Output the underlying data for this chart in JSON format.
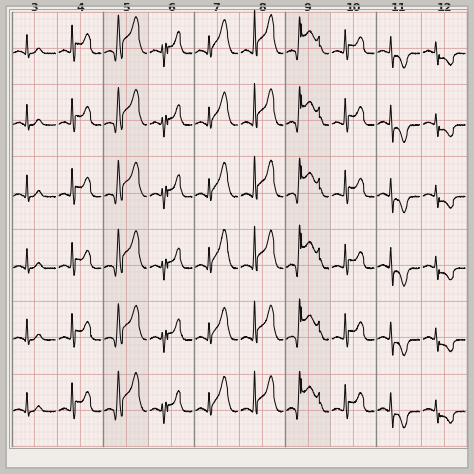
{
  "lead_labels": [
    "3",
    "4",
    "5",
    "6",
    "7",
    "8",
    "9",
    "10",
    "11",
    "12"
  ],
  "bg_color": "#f0ece8",
  "grid_minor_color": "#e8b8b8",
  "grid_major_color": "#d09090",
  "col_shade_a": "#f8f0ee",
  "col_shade_b": "#e8e0dc",
  "ecg_color": "#111111",
  "border_color": "#aaaaaa",
  "label_color": "#222222",
  "n_cols": 10,
  "n_rows": 6,
  "fig_bg": "#c8c4c0",
  "label_fontsize": 8.0
}
